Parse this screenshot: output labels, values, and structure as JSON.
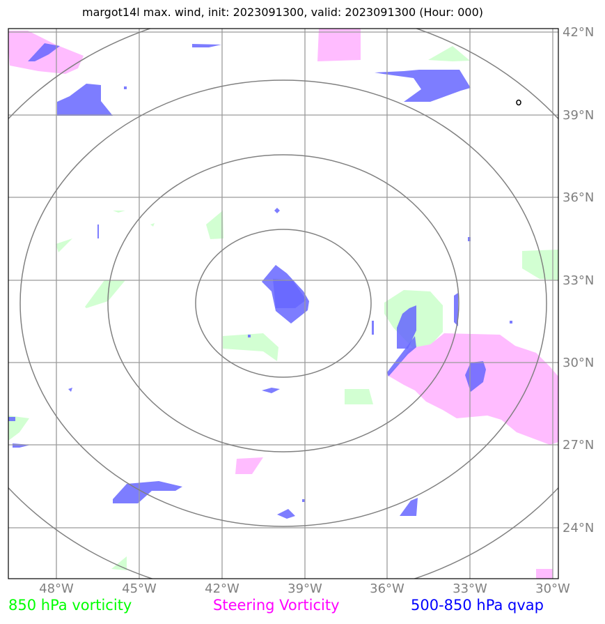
{
  "title": "margot14l max. wind, init: 2023091300, valid: 2023091300 (Hour: 000)",
  "map": {
    "lat_labels": [
      "42°N",
      "39°N",
      "36°N",
      "33°N",
      "30°N",
      "27°N",
      "24°N"
    ],
    "lon_labels": [
      "48°W",
      "45°W",
      "42°W",
      "39°W",
      "36°W",
      "33°W",
      "30°W"
    ],
    "lat_values": [
      42,
      39,
      36,
      33,
      30,
      27,
      24
    ],
    "lon_values": [
      -48,
      -45,
      -42,
      -39,
      -36,
      -33,
      -30
    ],
    "range_rings_count": 4,
    "storm_center": {
      "lat": 32.5,
      "lon": -39.0
    }
  },
  "legend": {
    "vort850": {
      "label": "850 hPa vorticity",
      "color": "#00ff00"
    },
    "steering": {
      "label": "Steering Vorticity",
      "color": "#ff00ff"
    },
    "qvap": {
      "label": "500-850 hPa qvap",
      "color": "#0000ff"
    }
  },
  "colors": {
    "vort850_fill": "#ccffcc",
    "steering_fill": "#ffb3ff",
    "qvap_fill": "#6464ff",
    "grid": "#999999",
    "rings": "#808080",
    "tick_labels": "#808080"
  }
}
